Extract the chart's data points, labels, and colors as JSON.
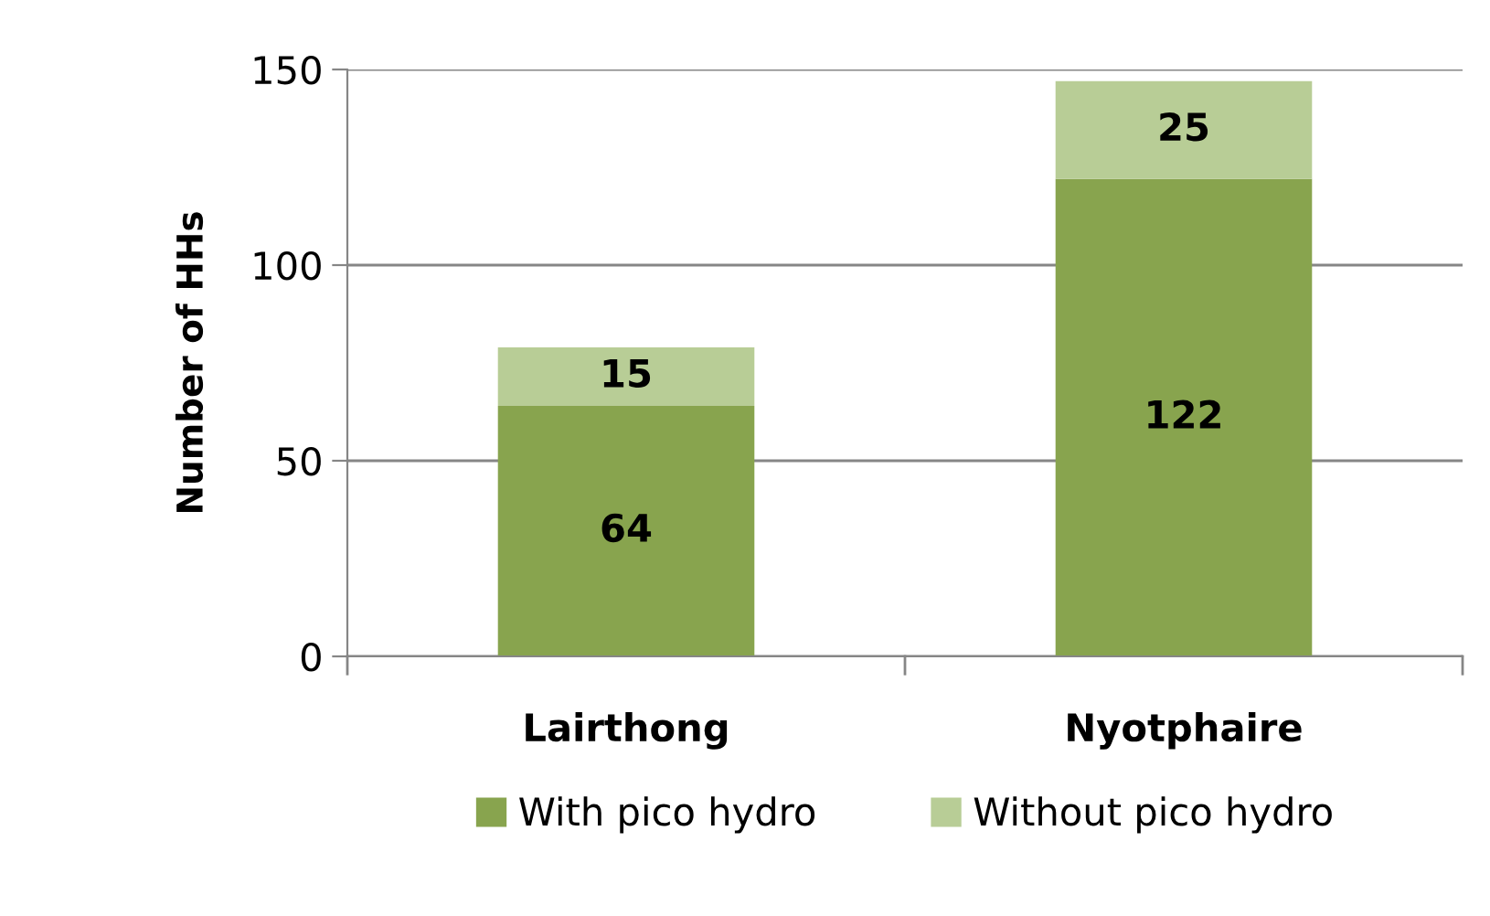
{
  "chart_data": {
    "type": "bar",
    "stacked": true,
    "ylabel": "Number of HHs",
    "categories": [
      "Lairthong",
      "Nyotphaire"
    ],
    "series": [
      {
        "name": "With pico hydro",
        "color": "#88a44e",
        "values": [
          64,
          122
        ]
      },
      {
        "name": "Without pico hydro",
        "color": "#b8cd96",
        "values": [
          15,
          25
        ]
      }
    ],
    "ylim": [
      0,
      150
    ],
    "yticks": [
      0,
      50,
      100,
      150
    ],
    "grid": "y",
    "legend": "bottom",
    "data_labels": true
  }
}
